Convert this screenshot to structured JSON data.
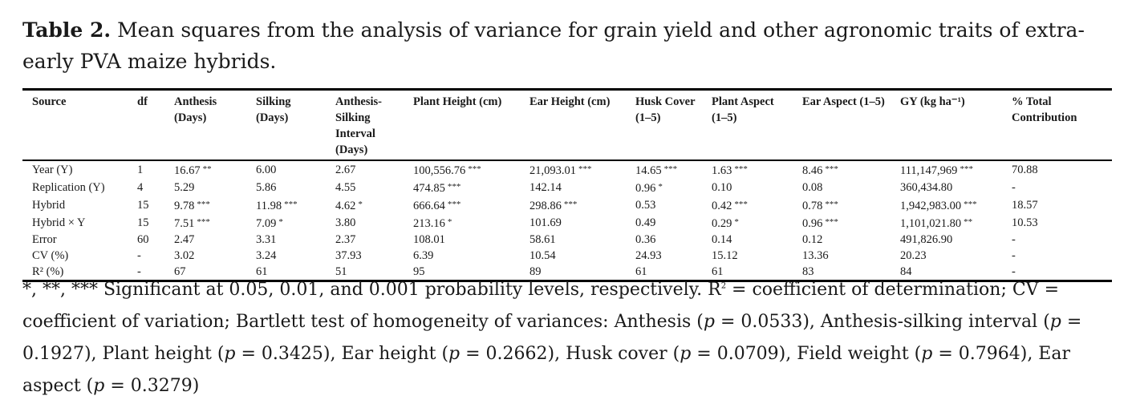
{
  "caption": {
    "label": "Table 2.",
    "text": "Mean squares from the analysis of variance for grain yield and other agronomic traits of extra-early PVA maize hybrids."
  },
  "table": {
    "headers": [
      "Source",
      "df",
      "Anthesis (Days)",
      "Silking (Days)",
      "Anthesis-Silking Interval (Days)",
      "Plant Height (cm)",
      "Ear Height (cm)",
      "Husk Cover (1–5)",
      "Plant Aspect (1–5)",
      "Ear Aspect (1–5)",
      "GY (kg ha⁻¹)",
      "% Total Contribution"
    ],
    "rows": [
      [
        {
          "v": "Year (Y)"
        },
        {
          "v": "1"
        },
        {
          "v": "16.67",
          "s": "**"
        },
        {
          "v": "6.00"
        },
        {
          "v": "2.67"
        },
        {
          "v": "100,556.76",
          "s": "***"
        },
        {
          "v": "21,093.01",
          "s": "***"
        },
        {
          "v": "14.65",
          "s": "***"
        },
        {
          "v": "1.63",
          "s": "***"
        },
        {
          "v": "8.46",
          "s": "***"
        },
        {
          "v": "111,147,969",
          "s": "***"
        },
        {
          "v": "70.88"
        }
      ],
      [
        {
          "v": "Replication (Y)"
        },
        {
          "v": "4"
        },
        {
          "v": "5.29"
        },
        {
          "v": "5.86"
        },
        {
          "v": "4.55"
        },
        {
          "v": "474.85",
          "s": "***"
        },
        {
          "v": "142.14"
        },
        {
          "v": "0.96",
          "s": "*"
        },
        {
          "v": "0.10"
        },
        {
          "v": "0.08"
        },
        {
          "v": "360,434.80"
        },
        {
          "v": "-"
        }
      ],
      [
        {
          "v": "Hybrid"
        },
        {
          "v": "15"
        },
        {
          "v": "9.78",
          "s": "***"
        },
        {
          "v": "11.98",
          "s": "***"
        },
        {
          "v": "4.62",
          "s": "*"
        },
        {
          "v": "666.64",
          "s": "***"
        },
        {
          "v": "298.86",
          "s": "***"
        },
        {
          "v": "0.53"
        },
        {
          "v": "0.42",
          "s": "***"
        },
        {
          "v": "0.78",
          "s": "***"
        },
        {
          "v": "1,942,983.00",
          "s": "***"
        },
        {
          "v": "18.57"
        }
      ],
      [
        {
          "v": "Hybrid × Y"
        },
        {
          "v": "15"
        },
        {
          "v": "7.51",
          "s": "***"
        },
        {
          "v": "7.09",
          "s": "*"
        },
        {
          "v": "3.80"
        },
        {
          "v": "213.16",
          "s": "*"
        },
        {
          "v": "101.69"
        },
        {
          "v": "0.49"
        },
        {
          "v": "0.29",
          "s": "*"
        },
        {
          "v": "0.96",
          "s": "***"
        },
        {
          "v": "1,101,021.80",
          "s": "**"
        },
        {
          "v": "10.53"
        }
      ],
      [
        {
          "v": "Error"
        },
        {
          "v": "60"
        },
        {
          "v": "2.47"
        },
        {
          "v": "3.31"
        },
        {
          "v": "2.37"
        },
        {
          "v": "108.01"
        },
        {
          "v": "58.61"
        },
        {
          "v": "0.36"
        },
        {
          "v": "0.14"
        },
        {
          "v": "0.12"
        },
        {
          "v": "491,826.90"
        },
        {
          "v": "-"
        }
      ],
      [
        {
          "v": "CV (%)"
        },
        {
          "v": "-"
        },
        {
          "v": "3.02"
        },
        {
          "v": "3.24"
        },
        {
          "v": "37.93"
        },
        {
          "v": "6.39"
        },
        {
          "v": "10.54"
        },
        {
          "v": "24.93"
        },
        {
          "v": "15.12"
        },
        {
          "v": "13.36"
        },
        {
          "v": "20.23"
        },
        {
          "v": "-"
        }
      ],
      [
        {
          "v": "R² (%)"
        },
        {
          "v": "-"
        },
        {
          "v": "67"
        },
        {
          "v": "61"
        },
        {
          "v": "51"
        },
        {
          "v": "95"
        },
        {
          "v": "89"
        },
        {
          "v": "61"
        },
        {
          "v": "61"
        },
        {
          "v": "83"
        },
        {
          "v": "84"
        },
        {
          "v": "-"
        }
      ]
    ]
  },
  "notes": {
    "text": "*, **, *** Significant at 0.05, 0.01, and 0.001 probability levels, respectively. R² = coefficient of determination; CV = coefficient of variation; Bartlett test of homogeneity of variances: Anthesis (p = 0.0533), Anthesis-silking interval (p = 0.1927), Plant height (p = 0.3425), Ear height (p = 0.2662), Husk cover (p = 0.0709), Field weight (p = 0.7964), Ear aspect (p = 0.3279)"
  }
}
